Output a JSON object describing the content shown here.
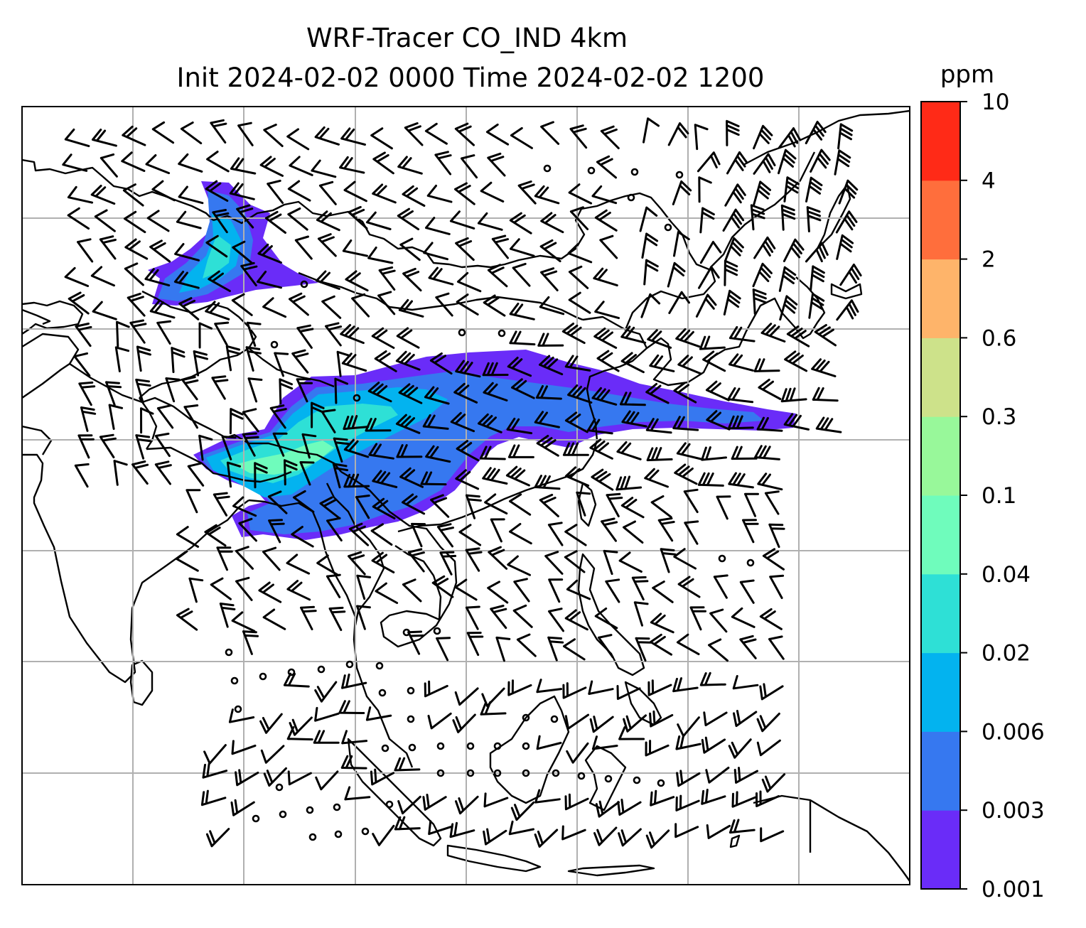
{
  "title": {
    "line1": "WRF-Tracer CO_IND 4km",
    "line2": "Init 2024-02-02 0000 Time 2024-02-02 1200"
  },
  "colorbar": {
    "unit": "ppm",
    "levels": [
      "0.001",
      "0.003",
      "0.006",
      "0.02",
      "0.04",
      "0.1",
      "0.3",
      "0.6",
      "2",
      "4",
      "10"
    ],
    "colors": [
      "#6a2cf8",
      "#3678f0",
      "#03b3ef",
      "#2ee0d6",
      "#6ffcbc",
      "#98f89a",
      "#cde28a",
      "#feb46a",
      "#ff6e3c",
      "#ff2a17"
    ]
  },
  "colors": {
    "coast": "#000000",
    "grid": "#b0b0b0",
    "barb": "#000000"
  }
}
